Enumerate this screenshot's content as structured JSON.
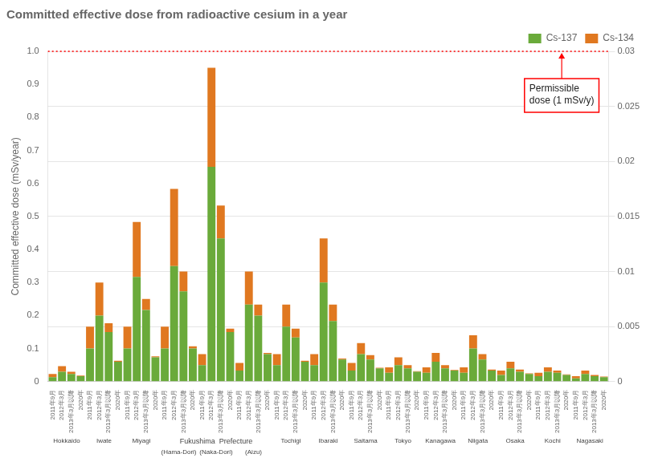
{
  "chart_data": {
    "type": "bar",
    "title": "Committed effective dose from radioactive cesium in a year",
    "ylabel": "Committed effective dose (mSv/year)",
    "categories": [
      "2011年9月",
      "2012年3月",
      "2013年3月以降",
      "2020年",
      "2011年9月",
      "2012年3月",
      "2013年3月以降",
      "2020年",
      "2011年9月",
      "2012年3月",
      "2013年3月以降",
      "2020年",
      "2011年9月",
      "2012年3月",
      "2013年3月以降",
      "2020年",
      "2011年9月",
      "2012年3月",
      "2013年3月以降",
      "2020年",
      "2011年9月",
      "2012年3月",
      "2013年3月以降",
      "2020年",
      "2011年9月",
      "2012年3月",
      "2013年3月以降",
      "2020年",
      "2011年9月",
      "2012年3月",
      "2013年3月以降",
      "2020年",
      "2011年9月",
      "2012年3月",
      "2013年3月以降",
      "2020年",
      "2011年9月",
      "2012年3月",
      "2013年3月以降",
      "2020年",
      "2011年9月",
      "2012年3月",
      "2013年3月以降",
      "2020年",
      "2011年9月",
      "2012年3月",
      "2013年3月以降",
      "2020年",
      "2011年9月",
      "2012年3月",
      "2013年3月以降",
      "2020年",
      "2011年9月",
      "2012年3月",
      "2013年3月以降",
      "2020年",
      "2011年9月",
      "2012年3月",
      "2013年3月以降",
      "2020年"
    ],
    "groups": [
      "Hokkaido",
      "Iwate",
      "Miyagi",
      "(Hama-Dori)",
      "(Naka-Dori)",
      "(Aizu)",
      "Tochigi",
      "Ibaraki",
      "Saitama",
      "Tokyo",
      "Kanagawa",
      "Niigata",
      "Osaka",
      "Kochi",
      "Nagasaki"
    ],
    "group_header": {
      "label": "Fukushima  Prefecture",
      "groups": [
        "(Hama-Dori)",
        "(Naka-Dori)",
        "(Aizu)"
      ]
    },
    "series": [
      {
        "name": "Cs-137",
        "color": "#6aaa3a",
        "axis": "y2",
        "values": [
          0.0004,
          0.0009,
          0.0007,
          0.0005,
          0.003,
          0.006,
          0.0045,
          0.0018,
          0.003,
          0.0095,
          0.0065,
          0.0022,
          0.003,
          0.0105,
          0.0082,
          0.003,
          0.0015,
          0.0195,
          0.013,
          0.0045,
          0.001,
          0.007,
          0.006,
          0.0025,
          0.0015,
          0.005,
          0.004,
          0.0018,
          0.0015,
          0.009,
          0.0055,
          0.002,
          0.001,
          0.0025,
          0.002,
          0.0012,
          0.0008,
          0.0015,
          0.0012,
          0.0009,
          0.0008,
          0.0018,
          0.0012,
          0.001,
          0.0008,
          0.003,
          0.002,
          0.001,
          0.0006,
          0.0012,
          0.0009,
          0.0007,
          0.0005,
          0.0009,
          0.0008,
          0.0006,
          0.0003,
          0.0007,
          0.0005,
          0.0004
        ]
      },
      {
        "name": "Cs-134",
        "color": "#e07820",
        "axis": "y2",
        "values": [
          0.0003,
          0.0005,
          0.0002,
          5e-05,
          0.002,
          0.003,
          0.0008,
          0.0001,
          0.002,
          0.005,
          0.001,
          0.0001,
          0.002,
          0.007,
          0.0018,
          0.0002,
          0.001,
          0.009,
          0.003,
          0.0003,
          0.0007,
          0.003,
          0.001,
          0.0001,
          0.001,
          0.002,
          0.0008,
          0.0001,
          0.001,
          0.004,
          0.0015,
          0.0001,
          0.0007,
          0.001,
          0.0004,
          5e-05,
          0.0005,
          0.0007,
          0.0003,
          5e-05,
          0.0005,
          0.0008,
          0.0003,
          5e-05,
          0.0005,
          0.0012,
          0.0005,
          0.0001,
          0.0004,
          0.0006,
          0.0002,
          5e-05,
          0.0003,
          0.0004,
          0.0002,
          5e-05,
          0.0002,
          0.0003,
          0.0001,
          5e-05
        ]
      }
    ],
    "stacked": true,
    "ylim": [
      0,
      1.0
    ],
    "yticks": [
      0,
      0.1,
      0.2,
      0.3,
      0.4,
      0.5,
      0.6,
      0.7,
      0.8,
      0.9,
      {
        "value": 1.0,
        "label": "1.0"
      }
    ],
    "y2lim": [
      0,
      0.03
    ],
    "y2ticks": [
      0,
      0.005,
      0.01,
      0.015,
      0.02,
      0.025,
      0.03
    ],
    "grid": true,
    "legend": "upper right",
    "annotations": [
      {
        "text": "Permissible\ndose (1 mSv/y)",
        "y": 1.0,
        "axis": "y",
        "color": "red"
      }
    ]
  }
}
